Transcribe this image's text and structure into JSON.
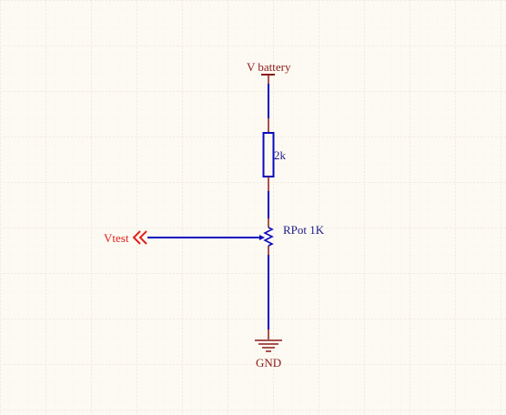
{
  "schematic": {
    "power_label": "V battery",
    "ground_label": "GND",
    "resistor_value": "2k",
    "potentiometer_label": "RPot 1K",
    "port_label": "Vtest"
  },
  "colors": {
    "background": "#fdfaf3",
    "grid_minor": "#ece6da",
    "grid_major": "#ddd6c8",
    "wire": "#0b0bbf",
    "power_symbol": "#8b1a1a",
    "ground_symbol": "#8b1a1a",
    "component_outline": "#0b0bbf",
    "pin": "#8b1a1a",
    "port": "#e0201b"
  }
}
